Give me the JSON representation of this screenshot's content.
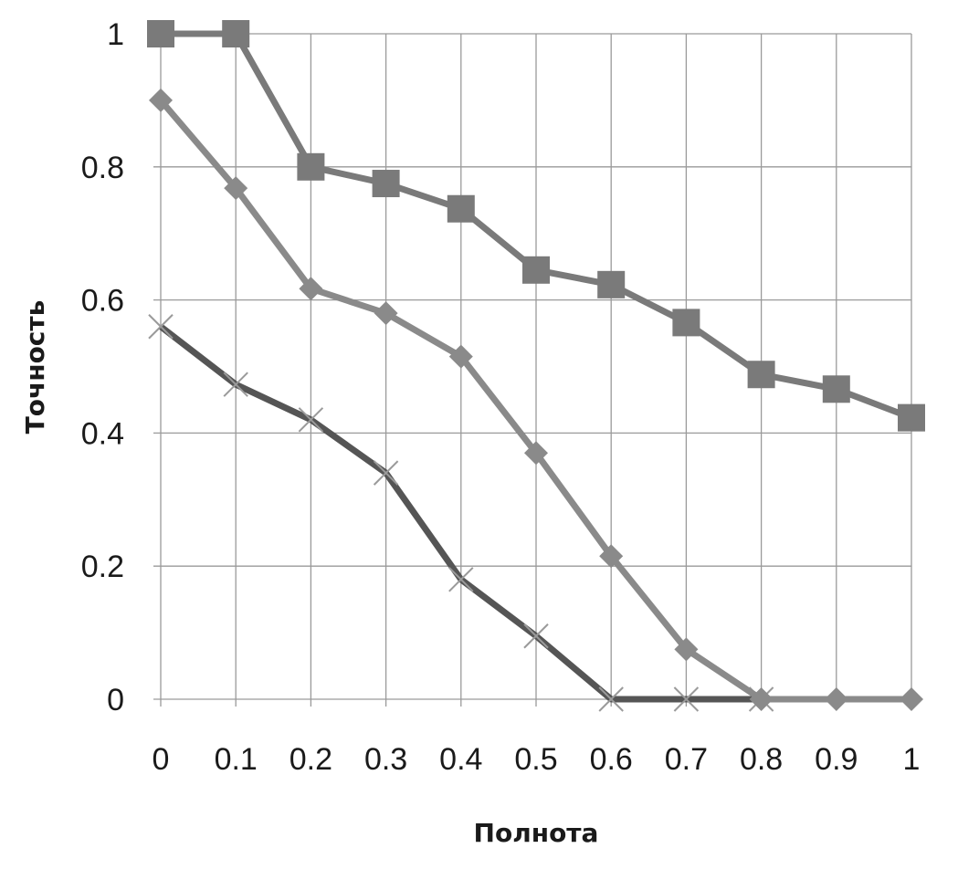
{
  "chart_data": {
    "type": "line",
    "title": "",
    "xlabel": "Полнота",
    "ylabel": "Точность",
    "xlim": [
      0,
      1
    ],
    "ylim": [
      0,
      1
    ],
    "x_ticks": [
      "0",
      "0.1",
      "0.2",
      "0.3",
      "0.4",
      "0.5",
      "0.6",
      "0.7",
      "0.8",
      "0.9",
      "1"
    ],
    "y_ticks": [
      "0",
      "0.2",
      "0.4",
      "0.6",
      "0.8",
      "1"
    ],
    "grid": true,
    "legend": "none",
    "x": [
      0,
      0.1,
      0.2,
      0.3,
      0.4,
      0.5,
      0.6,
      0.7,
      0.8,
      0.9,
      1
    ],
    "series": [
      {
        "marker": "square",
        "color": "#7a7a7a",
        "values": [
          1.0,
          1.0,
          0.8,
          0.775,
          0.737,
          0.645,
          0.623,
          0.566,
          0.488,
          0.466,
          0.423
        ]
      },
      {
        "marker": "diamond",
        "color": "#8a8a8a",
        "values": [
          0.9,
          0.768,
          0.617,
          0.58,
          0.515,
          0.37,
          0.215,
          0.075,
          0,
          0,
          0
        ]
      },
      {
        "marker": "x",
        "color": "#555555",
        "values": [
          0.56,
          0.473,
          0.42,
          0.34,
          0.18,
          0.095,
          0,
          0,
          0,
          null,
          null
        ]
      }
    ]
  }
}
